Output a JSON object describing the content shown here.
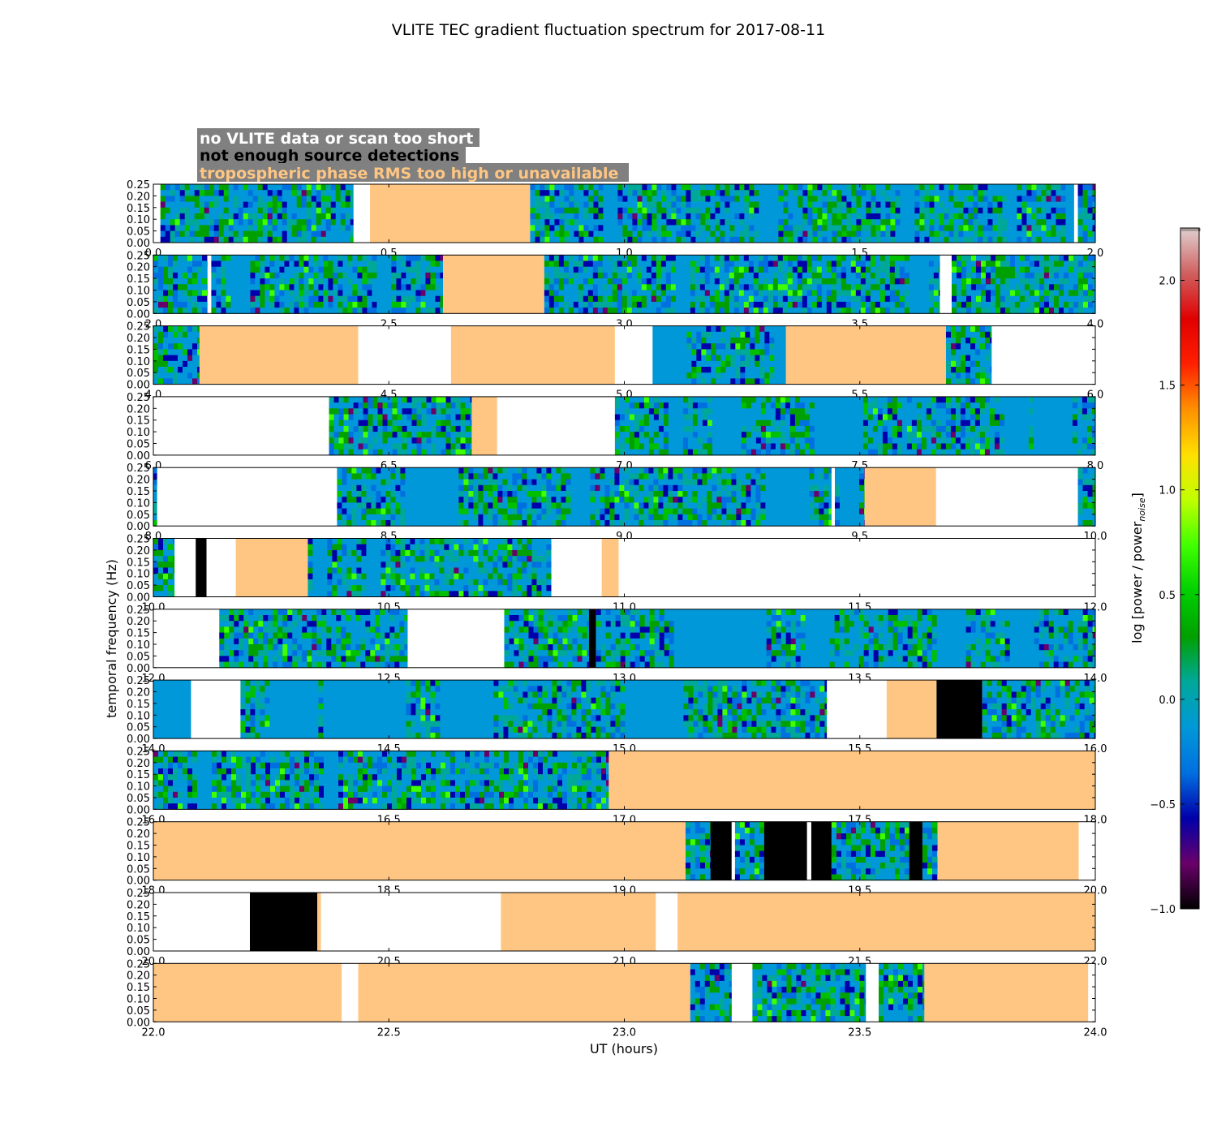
{
  "chart_data": {
    "type": "heatmap",
    "title": "VLITE TEC gradient fluctuation spectrum for 2017-08-11",
    "xlabel": "UT (hours)",
    "ylabel": "temporal frequency (Hz)",
    "colorbar_label": "log [power / power",
    "colorbar_label_sub": "noise",
    "colorbar_label_end": "]",
    "colorbar_range": [
      -1.0,
      2.25
    ],
    "colorbar_ticks": [
      "−1.0",
      "−0.5",
      "0.0",
      "0.5",
      "1.0",
      "1.5",
      "2.0"
    ],
    "colorbar_tick_values": [
      -1.0,
      -0.5,
      0.0,
      0.5,
      1.0,
      1.5,
      2.0
    ],
    "colormap": [
      "#000000",
      "#6a006a",
      "#0000aa",
      "#0070e0",
      "#0098d8",
      "#00a89a",
      "#00a000",
      "#00d000",
      "#40ff00",
      "#c0ff00",
      "#ffe000",
      "#ff9000",
      "#ff2000",
      "#e00000",
      "#d06060",
      "#e0d0d0"
    ],
    "freq_ticks": [
      "0.00",
      "0.05",
      "0.10",
      "0.15",
      "0.20",
      "0.25"
    ],
    "freq_range": [
      0,
      0.25
    ],
    "colors": {
      "no_data": "#ffffff",
      "not_enough_detections": "#000000",
      "tropospheric": "#ffc683",
      "legend_box": "#808080"
    },
    "legend": [
      {
        "label": "no VLITE data or scan too short",
        "color": "#ffffff",
        "category": "no_data"
      },
      {
        "label": "not enough source detections",
        "color": "#000000",
        "category": "not_enough_detections"
      },
      {
        "label": "tropospheric phase RMS too high or unavailable",
        "color": "#ffc683",
        "category": "tropospheric"
      }
    ],
    "panels": [
      {
        "xlim": [
          0,
          2
        ],
        "xticks": [
          "0.0",
          "0.5",
          "1.0",
          "1.5",
          "2.0"
        ],
        "segments": [
          [
            0.0,
            0.015,
            "w"
          ],
          [
            0.015,
            0.425,
            "s"
          ],
          [
            0.425,
            0.46,
            "w"
          ],
          [
            0.46,
            0.8,
            "t"
          ],
          [
            0.8,
            1.955,
            "s"
          ],
          [
            1.955,
            1.963,
            "w"
          ],
          [
            1.963,
            2.0,
            "s"
          ]
        ],
        "blue_bands": [
          [
            0.945,
            0.98
          ],
          [
            1.285,
            1.32
          ],
          [
            1.58,
            1.61
          ],
          [
            1.81,
            1.83
          ],
          [
            1.93,
            1.955
          ]
        ]
      },
      {
        "xlim": [
          2,
          4
        ],
        "xticks": [
          "2.0",
          "2.5",
          "3.0",
          "3.5",
          "4.0"
        ],
        "segments": [
          [
            2.0,
            2.115,
            "s"
          ],
          [
            2.115,
            2.123,
            "w"
          ],
          [
            2.123,
            2.615,
            "s"
          ],
          [
            2.615,
            2.83,
            "t"
          ],
          [
            2.83,
            3.67,
            "s"
          ],
          [
            3.67,
            3.695,
            "w"
          ],
          [
            3.695,
            4.0,
            "s"
          ]
        ],
        "blue_bands": [
          [
            2.16,
            2.2
          ],
          [
            2.47,
            2.5
          ],
          [
            3.1,
            3.14
          ],
          [
            3.6,
            3.64
          ]
        ]
      },
      {
        "xlim": [
          4,
          6
        ],
        "xticks": [
          "4.0",
          "4.5",
          "5.0",
          "5.5",
          "6.0"
        ],
        "segments": [
          [
            4.0,
            4.098,
            "s"
          ],
          [
            4.098,
            4.435,
            "t"
          ],
          [
            4.435,
            4.632,
            "w"
          ],
          [
            4.632,
            4.98,
            "t"
          ],
          [
            4.98,
            5.06,
            "w"
          ],
          [
            5.06,
            5.343,
            "s"
          ],
          [
            5.343,
            5.683,
            "t"
          ],
          [
            5.683,
            5.78,
            "s"
          ],
          [
            5.78,
            6.0,
            "w"
          ]
        ],
        "blue_bands": [
          [
            5.06,
            5.13
          ],
          [
            5.31,
            5.34
          ]
        ]
      },
      {
        "xlim": [
          6,
          8
        ],
        "xticks": [
          "6.0",
          "6.5",
          "7.0",
          "7.5",
          "8.0"
        ],
        "segments": [
          [
            6.0,
            6.373,
            "w"
          ],
          [
            6.373,
            6.676,
            "s"
          ],
          [
            6.676,
            6.73,
            "t"
          ],
          [
            6.73,
            6.98,
            "w"
          ],
          [
            6.98,
            8.0,
            "s"
          ]
        ],
        "blue_bands": [
          [
            7.09,
            7.12
          ],
          [
            7.18,
            7.24
          ],
          [
            7.4,
            7.5
          ],
          [
            7.58,
            7.6
          ],
          [
            7.8,
            7.85
          ],
          [
            7.86,
            7.95
          ]
        ]
      },
      {
        "xlim": [
          8,
          10
        ],
        "xticks": [
          "8.0",
          "8.5",
          "9.0",
          "9.5",
          "10.0"
        ],
        "segments": [
          [
            8.0,
            8.008,
            "s"
          ],
          [
            8.008,
            8.39,
            "w"
          ],
          [
            8.39,
            9.44,
            "s"
          ],
          [
            9.44,
            9.447,
            "w"
          ],
          [
            9.447,
            9.51,
            "s"
          ],
          [
            9.51,
            9.662,
            "t"
          ],
          [
            9.662,
            9.963,
            "w"
          ],
          [
            9.963,
            10.0,
            "s"
          ]
        ],
        "blue_bands": [
          [
            8.525,
            8.64
          ],
          [
            8.88,
            8.92
          ],
          [
            9.29,
            9.385
          ],
          [
            9.45,
            9.49
          ]
        ]
      },
      {
        "xlim": [
          10,
          12
        ],
        "xticks": [
          "10.0",
          "10.5",
          "11.0",
          "11.5",
          "12.0"
        ],
        "segments": [
          [
            10.0,
            10.045,
            "s"
          ],
          [
            10.045,
            10.09,
            "w"
          ],
          [
            10.09,
            10.113,
            "b"
          ],
          [
            10.113,
            10.175,
            "w"
          ],
          [
            10.175,
            10.328,
            "t"
          ],
          [
            10.328,
            10.845,
            "s"
          ],
          [
            10.845,
            10.952,
            "w"
          ],
          [
            10.952,
            10.988,
            "t"
          ],
          [
            10.988,
            12.0,
            "w"
          ]
        ],
        "blue_bands": [
          [
            10.33,
            10.36
          ],
          [
            10.45,
            10.48
          ]
        ]
      },
      {
        "xlim": [
          12,
          14
        ],
        "xticks": [
          "12.0",
          "12.5",
          "13.0",
          "13.5",
          "14.0"
        ],
        "segments": [
          [
            12.0,
            12.14,
            "w"
          ],
          [
            12.14,
            12.54,
            "s"
          ],
          [
            12.54,
            12.745,
            "w"
          ],
          [
            12.745,
            12.925,
            "s"
          ],
          [
            12.925,
            12.94,
            "b"
          ],
          [
            12.94,
            14.0,
            "s"
          ]
        ],
        "blue_bands": [
          [
            13.1,
            13.3
          ],
          [
            13.38,
            13.43
          ],
          [
            13.66,
            13.72
          ],
          [
            13.81,
            13.86
          ]
        ]
      },
      {
        "xlim": [
          14,
          16
        ],
        "xticks": [
          "14.0",
          "14.5",
          "15.0",
          "15.5",
          "16.0"
        ],
        "segments": [
          [
            14.0,
            14.08,
            "s"
          ],
          [
            14.08,
            14.185,
            "w"
          ],
          [
            14.185,
            15.43,
            "s"
          ],
          [
            15.43,
            15.557,
            "w"
          ],
          [
            15.557,
            15.663,
            "t"
          ],
          [
            15.663,
            15.76,
            "b"
          ],
          [
            15.76,
            16.0,
            "s"
          ]
        ],
        "blue_bands": [
          [
            14.0,
            14.08
          ],
          [
            14.24,
            14.35
          ],
          [
            14.36,
            14.53
          ],
          [
            14.6,
            14.72
          ],
          [
            15.0,
            15.12
          ]
        ]
      },
      {
        "xlim": [
          16,
          18
        ],
        "xticks": [
          "16.0",
          "16.5",
          "17.0",
          "17.5",
          "18.0"
        ],
        "segments": [
          [
            16.0,
            16.967,
            "s"
          ],
          [
            16.967,
            18.0,
            "t"
          ]
        ],
        "blue_bands": [
          [
            16.09,
            16.12
          ],
          [
            16.36,
            16.39
          ]
        ]
      },
      {
        "xlim": [
          18,
          20
        ],
        "xticks": [
          "18.0",
          "18.5",
          "19.0",
          "19.5",
          "20.0"
        ],
        "segments": [
          [
            18.0,
            19.13,
            "t"
          ],
          [
            19.13,
            19.183,
            "s"
          ],
          [
            19.183,
            19.228,
            "b"
          ],
          [
            19.228,
            19.235,
            "w"
          ],
          [
            19.235,
            19.297,
            "s"
          ],
          [
            19.297,
            19.388,
            "b"
          ],
          [
            19.388,
            19.397,
            "w"
          ],
          [
            19.397,
            19.44,
            "b"
          ],
          [
            19.44,
            19.605,
            "s"
          ],
          [
            19.605,
            19.633,
            "b"
          ],
          [
            19.633,
            19.665,
            "s"
          ],
          [
            19.665,
            19.965,
            "t"
          ],
          [
            19.965,
            20.0,
            "w"
          ]
        ],
        "blue_bands": []
      },
      {
        "xlim": [
          20,
          22
        ],
        "xticks": [
          "20.0",
          "20.5",
          "21.0",
          "21.5",
          "22.0"
        ],
        "segments": [
          [
            20.0,
            20.205,
            "w"
          ],
          [
            20.205,
            20.348,
            "b"
          ],
          [
            20.348,
            20.356,
            "t"
          ],
          [
            20.356,
            20.738,
            "w"
          ],
          [
            20.738,
            21.067,
            "t"
          ],
          [
            21.067,
            21.113,
            "w"
          ],
          [
            21.113,
            22.0,
            "t"
          ]
        ],
        "blue_bands": []
      },
      {
        "xlim": [
          22,
          24
        ],
        "xticks": [
          "22.0",
          "22.5",
          "23.0",
          "23.5",
          "24.0"
        ],
        "segments": [
          [
            22.0,
            22.4,
            "t"
          ],
          [
            22.4,
            22.435,
            "w"
          ],
          [
            22.435,
            23.14,
            "t"
          ],
          [
            23.14,
            23.228,
            "s"
          ],
          [
            23.228,
            23.272,
            "w"
          ],
          [
            23.272,
            23.513,
            "s"
          ],
          [
            23.513,
            23.54,
            "w"
          ],
          [
            23.54,
            23.637,
            "s"
          ],
          [
            23.637,
            23.985,
            "t"
          ],
          [
            23.985,
            24.0,
            "w"
          ]
        ],
        "blue_bands": []
      }
    ]
  }
}
